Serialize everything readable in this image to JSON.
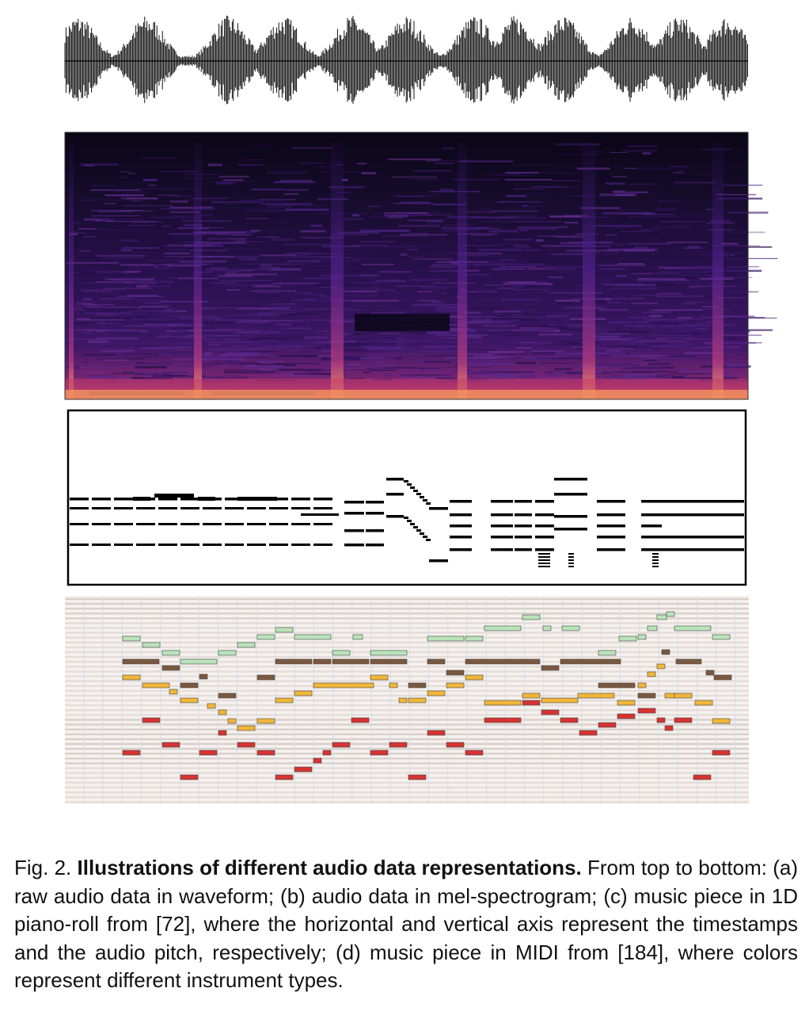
{
  "figure": {
    "panels": [
      "waveform",
      "mel-spectrogram",
      "piano-roll-1d",
      "midi"
    ],
    "midi_instrument_colors": [
      "#b9e3b9",
      "#7b5840",
      "#f0b63a",
      "#d63333"
    ],
    "spectrogram_colormap": "magma"
  },
  "caption": {
    "label": "Fig. 2.",
    "title": "Illustrations of different audio data representations.",
    "body": "From top to bottom: (a) raw audio data in waveform; (b) audio data in mel-spectrogram; (c) music piece in 1D piano-roll from [72], where the horizontal and vertical axis represent the timestamps and the audio pitch, respectively; (d) music piece in MIDI from [184], where colors represent different instrument types."
  }
}
